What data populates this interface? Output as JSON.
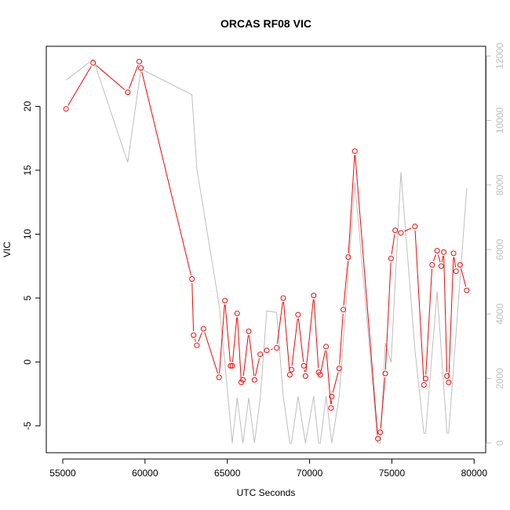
{
  "chart_data": {
    "type": "line",
    "title": "ORCAS RF08 VIC",
    "xlabel": "UTC Seconds",
    "ylabel": "VIC",
    "xlim": [
      54000,
      80700
    ],
    "ylim": [
      -7.1,
      24.7
    ],
    "y2lim": [
      -300,
      12300
    ],
    "x_ticks": [
      55000,
      60000,
      65000,
      70000,
      75000,
      80000
    ],
    "y_ticks": [
      -5,
      0,
      5,
      10,
      15,
      20
    ],
    "y2_ticks": [
      0,
      2000,
      4000,
      6000,
      8000,
      10000,
      12000
    ],
    "x_tick_labels": [
      "55000",
      "60000",
      "65000",
      "70000",
      "75000",
      "80000"
    ],
    "y_tick_labels": [
      "-5",
      "0",
      "5",
      "10",
      "15",
      "20"
    ],
    "y2_tick_labels": [
      "0",
      "2000",
      "4000",
      "6000",
      "8000",
      "10000",
      "12000"
    ],
    "series": [
      {
        "axis": "left",
        "color": "#ff0000",
        "markers": "open-circle",
        "x": [
          55200,
          56850,
          58950,
          59650,
          59750,
          62850,
          62950,
          63150,
          63550,
          64500,
          64850,
          65200,
          65300,
          65600,
          65850,
          65950,
          66300,
          66650,
          67000,
          67400,
          68000,
          68400,
          68800,
          68900,
          69300,
          69650,
          69750,
          70250,
          70550,
          70650,
          71000,
          71300,
          71350,
          71800,
          72050,
          72350,
          72750,
          74150,
          74300,
          74600,
          74950,
          75200,
          75550,
          76400,
          76950,
          77050,
          77450,
          77750,
          78000,
          78150,
          78350,
          78450,
          78750,
          78900,
          79150,
          79550
        ],
        "y": [
          19.8,
          23.4,
          21.1,
          23.5,
          23.0,
          6.5,
          2.1,
          1.3,
          2.6,
          -1.2,
          4.8,
          -0.3,
          -0.3,
          3.8,
          -1.6,
          -1.4,
          2.4,
          -1.4,
          0.6,
          0.9,
          1.1,
          5.0,
          -1.0,
          -0.6,
          3.7,
          -0.3,
          -1.1,
          5.2,
          -0.8,
          -1.0,
          1.2,
          -3.6,
          -2.7,
          -0.5,
          4.1,
          8.2,
          16.5,
          -6.0,
          -5.5,
          -0.9,
          8.1,
          10.3,
          10.1,
          10.6,
          -1.8,
          -1.3,
          7.6,
          8.7,
          7.5,
          8.6,
          -1.1,
          -1.6,
          8.5,
          7.1,
          7.6,
          5.6
        ]
      },
      {
        "axis": "right",
        "color": "#bebebe",
        "markers": "none",
        "x": [
          55200,
          56850,
          58950,
          59750,
          62850,
          63150,
          64500,
          64850,
          65300,
          65600,
          65950,
          66300,
          66650,
          67000,
          67400,
          68000,
          68400,
          68800,
          68900,
          69300,
          69750,
          70250,
          70550,
          70650,
          71000,
          71350,
          71800,
          72750,
          74150,
          74300,
          74600,
          74950,
          75550,
          76400,
          76950,
          77050,
          77750,
          78350,
          78450,
          79550
        ],
        "y": [
          11250,
          11900,
          8700,
          11600,
          10800,
          8500,
          4300,
          2500,
          0,
          1400,
          0,
          1400,
          0,
          1400,
          4100,
          4050,
          1450,
          0,
          0,
          1450,
          0,
          1450,
          0,
          0,
          1450,
          0,
          1450,
          8100,
          0,
          0,
          3100,
          2500,
          8400,
          2900,
          300,
          300,
          4700,
          300,
          300,
          7900
        ]
      }
    ]
  }
}
